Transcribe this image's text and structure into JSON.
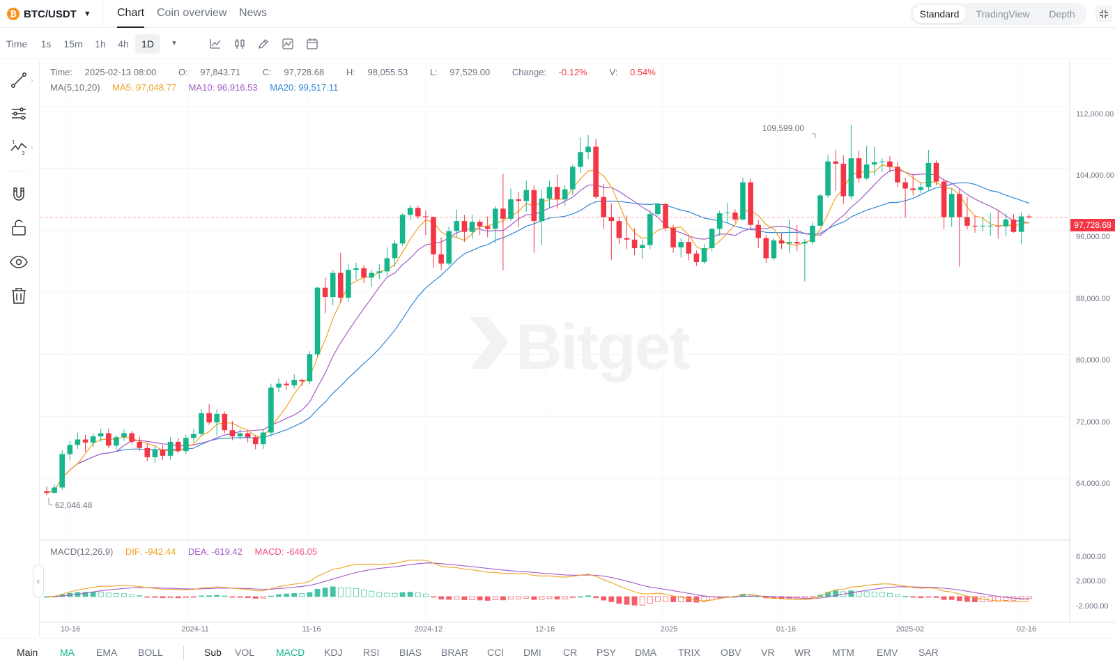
{
  "header": {
    "pair": "BTC/USDT",
    "coin_symbol": "₿",
    "tabs": [
      "Chart",
      "Coin overview",
      "News"
    ],
    "active_tab": "Chart",
    "views": [
      "Standard",
      "TradingView",
      "Depth"
    ],
    "active_view": "Standard"
  },
  "toolbar": {
    "timeframes": [
      "Time",
      "1s",
      "15m",
      "1h",
      "4h",
      "1D"
    ],
    "active_timeframe": "1D",
    "icons": [
      "more-timeframes-icon",
      "indicator-line-icon",
      "candle-type-icon",
      "draw-pen-icon",
      "compare-icon",
      "calendar-icon"
    ]
  },
  "sidebar": {
    "tools": [
      "trend-line-icon",
      "fib-tools-icon",
      "pattern-icon",
      "magnet-icon",
      "lock-icon",
      "eye-icon",
      "trash-icon"
    ]
  },
  "ohlc": {
    "time_label": "Time:",
    "time": "2025-02-13 08:00",
    "o_label": "O:",
    "o": "97,843.71",
    "c_label": "C:",
    "c": "97,728.68",
    "h_label": "H:",
    "h": "98,055.53",
    "l_label": "L:",
    "l": "97,529.00",
    "change_label": "Change:",
    "change": "-0.12%",
    "v_label": "V:",
    "v": "0.54%"
  },
  "ma": {
    "label": "MA(5,10,20)",
    "ma5": "MA5: 97,048.77",
    "ma10": "MA10: 96,916.53",
    "ma20": "MA20: 99,517.11"
  },
  "macd": {
    "label": "MACD(12,26,9)",
    "dif": "DIF: -942.44",
    "dea": "DEA: -619.42",
    "macd": "MACD: -646.05"
  },
  "colors": {
    "up": "#16b58c",
    "down": "#f23645",
    "ma5": "#f0a020",
    "ma10": "#a35bc7",
    "ma20": "#2f86d6"
  },
  "price_axis": [
    "112,000.00",
    "104,000.00",
    "96,000.00",
    "88,000.00",
    "80,000.00",
    "72,000.00",
    "64,000.00"
  ],
  "macd_axis": [
    "6,000.00",
    "2,000.00",
    "-2,000.00"
  ],
  "date_axis": [
    "10-16",
    "2024-11",
    "11-16",
    "2024-12",
    "12-16",
    "2025",
    "01-16",
    "2025-02",
    "02-16"
  ],
  "last_price": "97,728.68",
  "high_marker": "109,599.00",
  "low_marker": "62,046.48",
  "watermark": "Bitget",
  "bottom": {
    "main_label": "Main",
    "main": [
      "MA",
      "EMA",
      "BOLL"
    ],
    "main_active": "MA",
    "sub_label": "Sub",
    "sub": [
      "VOL",
      "MACD",
      "KDJ",
      "RSI",
      "BIAS",
      "BRAR",
      "CCI",
      "DMI",
      "CR",
      "PSY",
      "DMA",
      "TRIX",
      "OBV",
      "VR",
      "WR",
      "MTM",
      "EMV",
      "SAR"
    ],
    "sub_active": "MACD"
  },
  "chart_data": {
    "type": "candlestick",
    "y_range": [
      56000,
      118000
    ],
    "macd_range": [
      -3000,
      7000
    ],
    "x_start": "2024-10-11",
    "candles": [
      [
        62300,
        62900,
        61800,
        62100
      ],
      [
        62100,
        63200,
        62000,
        62800
      ],
      [
        62800,
        67600,
        62500,
        67100
      ],
      [
        67100,
        68800,
        66300,
        68300
      ],
      [
        68300,
        69900,
        67800,
        69000
      ],
      [
        69000,
        69600,
        67400,
        68600
      ],
      [
        68600,
        69800,
        68000,
        69400
      ],
      [
        69400,
        70400,
        68700,
        69800
      ],
      [
        69800,
        70400,
        67900,
        68200
      ],
      [
        68200,
        69600,
        67700,
        69300
      ],
      [
        69300,
        70300,
        68800,
        69800
      ],
      [
        69800,
        70100,
        68400,
        68700
      ],
      [
        68700,
        69400,
        67500,
        67900
      ],
      [
        67900,
        68500,
        66200,
        66700
      ],
      [
        66700,
        68200,
        66000,
        67700
      ],
      [
        67700,
        68300,
        66300,
        66900
      ],
      [
        66900,
        69300,
        66400,
        68700
      ],
      [
        68700,
        69200,
        67200,
        67500
      ],
      [
        67500,
        69600,
        67100,
        69200
      ],
      [
        69200,
        70300,
        68700,
        69700
      ],
      [
        69700,
        72900,
        69400,
        72400
      ],
      [
        72400,
        73600,
        70900,
        71200
      ],
      [
        71200,
        72900,
        69500,
        72300
      ],
      [
        72300,
        72600,
        69800,
        70200
      ],
      [
        70200,
        71400,
        68900,
        69400
      ],
      [
        69400,
        70400,
        69000,
        69800
      ],
      [
        69800,
        70100,
        68600,
        69300
      ],
      [
        69300,
        69600,
        67700,
        68400
      ],
      [
        68400,
        70300,
        67800,
        69900
      ],
      [
        69900,
        76200,
        69400,
        75700
      ],
      [
        75700,
        76900,
        75100,
        76200
      ],
      [
        76200,
        76600,
        75400,
        76000
      ],
      [
        76000,
        77400,
        75600,
        76700
      ],
      [
        76700,
        76900,
        75900,
        76500
      ],
      [
        76500,
        80400,
        76100,
        80000
      ],
      [
        80000,
        88700,
        79700,
        88600
      ],
      [
        88600,
        89900,
        85300,
        87400
      ],
      [
        87400,
        90900,
        86300,
        90500
      ],
      [
        90500,
        93100,
        86600,
        87300
      ],
      [
        87300,
        91700,
        86800,
        90900
      ],
      [
        90900,
        91800,
        89600,
        91100
      ],
      [
        91100,
        91500,
        89200,
        89900
      ],
      [
        89900,
        90900,
        88700,
        90500
      ],
      [
        90500,
        91600,
        89700,
        90700
      ],
      [
        90700,
        93800,
        90100,
        92400
      ],
      [
        92400,
        94700,
        91300,
        94300
      ],
      [
        94300,
        98200,
        94000,
        98000
      ],
      [
        98000,
        99300,
        97300,
        98900
      ],
      [
        98900,
        99200,
        97500,
        97800
      ],
      [
        97800,
        98600,
        95400,
        97700
      ],
      [
        97700,
        97800,
        91200,
        92900
      ],
      [
        92900,
        95100,
        90900,
        91700
      ],
      [
        91700,
        96500,
        91400,
        95900
      ],
      [
        95900,
        98700,
        95000,
        97200
      ],
      [
        97200,
        98000,
        94500,
        95800
      ],
      [
        95800,
        98000,
        94900,
        97100
      ],
      [
        97100,
        97400,
        95400,
        96500
      ],
      [
        96500,
        97800,
        95100,
        96200
      ],
      [
        96200,
        99100,
        94300,
        98800
      ],
      [
        98800,
        103300,
        90800,
        97500
      ],
      [
        97500,
        101400,
        97200,
        100000
      ],
      [
        100000,
        101000,
        96400,
        99800
      ],
      [
        99800,
        102400,
        98400,
        101200
      ],
      [
        101200,
        101800,
        93100,
        97200
      ],
      [
        97200,
        101300,
        94100,
        100100
      ],
      [
        100100,
        102400,
        98900,
        101600
      ],
      [
        101600,
        103200,
        98800,
        100000
      ],
      [
        100000,
        101800,
        99100,
        101300
      ],
      [
        101300,
        104500,
        100600,
        104200
      ],
      [
        104200,
        108000,
        103400,
        106100
      ],
      [
        106100,
        108300,
        105200,
        106800
      ],
      [
        106800,
        107800,
        100100,
        100300
      ],
      [
        100300,
        102000,
        96200,
        97700
      ],
      [
        97700,
        99500,
        92200,
        97200
      ],
      [
        97200,
        97800,
        94200,
        95000
      ],
      [
        95000,
        97900,
        93600,
        94800
      ],
      [
        94800,
        96300,
        92800,
        93700
      ],
      [
        93700,
        94700,
        92300,
        94100
      ],
      [
        94100,
        98600,
        93600,
        98100
      ],
      [
        98100,
        99500,
        97900,
        99400
      ],
      [
        99400,
        99600,
        95900,
        96300
      ],
      [
        96300,
        96700,
        93100,
        93800
      ],
      [
        93800,
        95000,
        92500,
        94500
      ],
      [
        94500,
        95200,
        92100,
        93000
      ],
      [
        93000,
        93400,
        91400,
        91900
      ],
      [
        91900,
        94200,
        91700,
        93700
      ],
      [
        93700,
        96300,
        93300,
        96200
      ],
      [
        96200,
        98500,
        95300,
        98200
      ],
      [
        98200,
        99500,
        97100,
        98300
      ],
      [
        98300,
        98700,
        97000,
        97400
      ],
      [
        97400,
        102800,
        97300,
        102200
      ],
      [
        102200,
        102700,
        96100,
        96700
      ],
      [
        96700,
        97300,
        93700,
        95000
      ],
      [
        95000,
        95400,
        91800,
        92400
      ],
      [
        92400,
        95000,
        92100,
        94700
      ],
      [
        94700,
        95600,
        93600,
        94300
      ],
      [
        94300,
        97400,
        93100,
        94500
      ],
      [
        94500,
        96700,
        93300,
        94300
      ],
      [
        94300,
        94900,
        89400,
        94500
      ],
      [
        94500,
        97100,
        94200,
        96600
      ],
      [
        96600,
        100700,
        96500,
        100500
      ],
      [
        100500,
        105700,
        100200,
        104900
      ],
      [
        104900,
        106400,
        101100,
        104600
      ],
      [
        104600,
        105700,
        99400,
        100400
      ],
      [
        100400,
        109600,
        100000,
        105300
      ],
      [
        105300,
        106300,
        102100,
        102700
      ],
      [
        102700,
        106900,
        102500,
        104500
      ],
      [
        104500,
        106800,
        103100,
        104800
      ],
      [
        104800,
        105300,
        103500,
        104900
      ],
      [
        104900,
        105600,
        103500,
        104200
      ],
      [
        104200,
        104800,
        101600,
        102200
      ],
      [
        102200,
        102800,
        97700,
        101400
      ],
      [
        101400,
        103300,
        100500,
        101200
      ],
      [
        101200,
        102200,
        100800,
        101600
      ],
      [
        101600,
        106400,
        101200,
        104700
      ],
      [
        104700,
        105000,
        101800,
        102300
      ],
      [
        102300,
        102600,
        96200,
        97700
      ],
      [
        97700,
        101400,
        96500,
        100700
      ],
      [
        100700,
        101400,
        91300,
        97700
      ],
      [
        97700,
        100300,
        96100,
        96600
      ],
      [
        96600,
        97900,
        95700,
        96500
      ],
      [
        96500,
        97600,
        95900,
        96600
      ],
      [
        96600,
        98200,
        95300,
        96600
      ],
      [
        96600,
        98600,
        94900,
        96500
      ],
      [
        96500,
        98200,
        95200,
        97400
      ],
      [
        97400,
        98100,
        95700,
        95800
      ],
      [
        95800,
        98300,
        94200,
        97800
      ],
      [
        97800,
        98100,
        97500,
        97700
      ]
    ]
  }
}
